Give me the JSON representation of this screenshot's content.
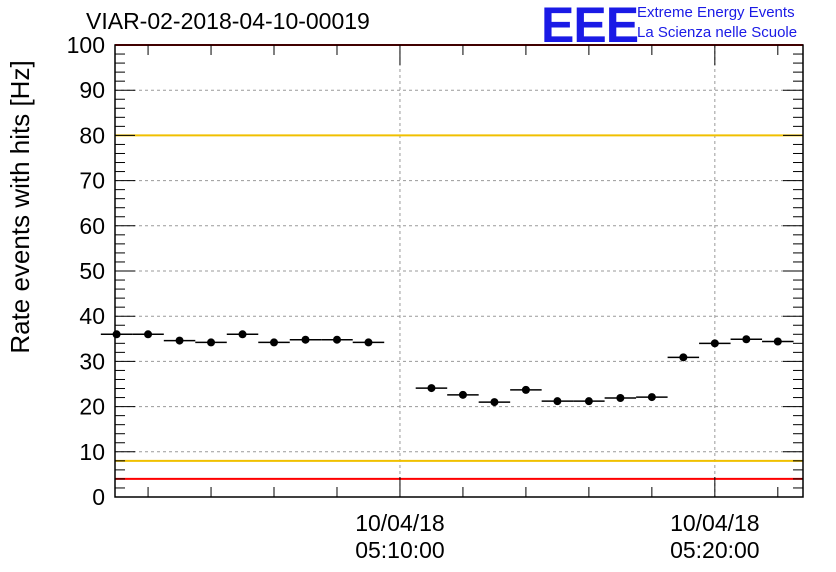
{
  "title": "VIAR-02-2018-04-10-00019",
  "logo": {
    "text": "EEE",
    "line1": "Extreme Energy Events",
    "line2": "La Scienza nelle Scuole",
    "color": "#1a1ae6"
  },
  "chart_data": {
    "type": "scatter",
    "title": "VIAR-02-2018-04-10-00019",
    "xlabel": "",
    "ylabel": "Rate events with hits [Hz]",
    "ylim": [
      0,
      100
    ],
    "yticks": [
      0,
      10,
      20,
      30,
      40,
      50,
      60,
      70,
      80,
      90,
      100
    ],
    "x_time_range": [
      "10/04/18 05:00:57",
      "10/04/18 05:22:48"
    ],
    "xticks": [
      {
        "time": "10/04/18 05:10:00",
        "label_date": "10/04/18",
        "label_time": "05:10:00"
      },
      {
        "time": "10/04/18 05:20:00",
        "label_date": "10/04/18",
        "label_time": "05:20:00"
      }
    ],
    "grid": true,
    "reference_lines": [
      {
        "y": 80,
        "color": "#f0c000"
      },
      {
        "y": 8,
        "color": "#f0c000"
      },
      {
        "y": 4,
        "color": "#ff0000"
      },
      {
        "y": 100,
        "color": "#ff0000"
      }
    ],
    "series": [
      {
        "color": "#000000",
        "bin_width_s": 60,
        "points": [
          {
            "t": "05:01:00",
            "y": 36.0
          },
          {
            "t": "05:02:00",
            "y": 36.0
          },
          {
            "t": "05:03:00",
            "y": 34.6
          },
          {
            "t": "05:04:00",
            "y": 34.2
          },
          {
            "t": "05:05:00",
            "y": 36.0
          },
          {
            "t": "05:06:00",
            "y": 34.2
          },
          {
            "t": "05:07:00",
            "y": 34.8
          },
          {
            "t": "05:08:00",
            "y": 34.8
          },
          {
            "t": "05:09:00",
            "y": 34.2
          },
          {
            "t": "05:11:00",
            "y": 24.1
          },
          {
            "t": "05:12:00",
            "y": 22.6
          },
          {
            "t": "05:13:00",
            "y": 21.0
          },
          {
            "t": "05:14:00",
            "y": 23.7
          },
          {
            "t": "05:15:00",
            "y": 21.2
          },
          {
            "t": "05:16:00",
            "y": 21.2
          },
          {
            "t": "05:17:00",
            "y": 21.9
          },
          {
            "t": "05:18:00",
            "y": 22.1
          },
          {
            "t": "05:19:00",
            "y": 30.9
          },
          {
            "t": "05:20:00",
            "y": 34.0
          },
          {
            "t": "05:21:00",
            "y": 34.9
          },
          {
            "t": "05:22:00",
            "y": 34.4
          }
        ]
      }
    ]
  }
}
